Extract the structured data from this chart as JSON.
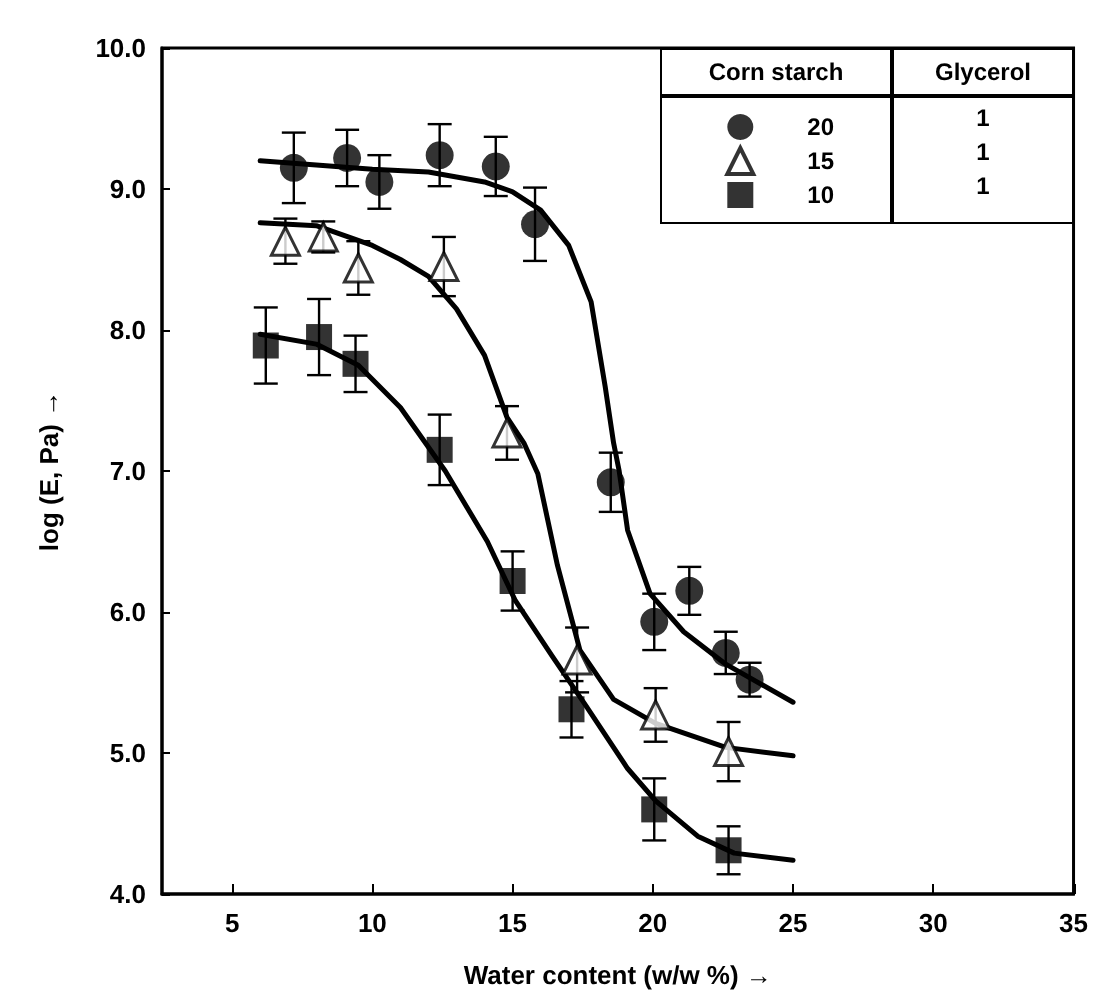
{
  "chart_data": {
    "type": "scatter",
    "xlabel": "Water content (w/w %) →",
    "ylabel": "log (E, Pa) →",
    "legend_title": "Corn starch",
    "legend": "top right",
    "grid": false,
    "annotations": [
      "Glycerol",
      "1",
      "1",
      "1"
    ],
    "xlim": [
      2.5,
      35
    ],
    "xticks": [
      5,
      10,
      15,
      20,
      25,
      30,
      35
    ],
    "ylim": [
      4,
      10
    ],
    "yticks": [
      {
        "value": 4,
        "label": "4.0"
      },
      {
        "value": 5,
        "label": "5.0"
      },
      {
        "value": 6,
        "label": "6.0"
      },
      {
        "value": 7,
        "label": "7.0"
      },
      {
        "value": 8,
        "label": "8.0"
      },
      {
        "value": 9,
        "label": "9.0"
      },
      {
        "value": 10,
        "label": "10.0"
      }
    ],
    "series": [
      {
        "name": "20",
        "color": "#000000",
        "marker": "circle",
        "x": [
          7.2,
          9.1,
          10.25,
          12.4,
          14.4,
          15.8,
          18.5,
          20.05,
          21.3,
          22.6,
          23.45
        ],
        "values": [
          9.15,
          9.22,
          9.05,
          9.24,
          9.16,
          8.75,
          6.92,
          5.93,
          6.15,
          5.71,
          5.52
        ],
        "errors": [
          0.25,
          0.2,
          0.19,
          0.22,
          0.21,
          0.26,
          0.21,
          0.2,
          0.17,
          0.15,
          0.12
        ]
      },
      {
        "name": "15",
        "color": "#000000",
        "marker": "triangle",
        "x": [
          6.9,
          8.25,
          9.5,
          12.55,
          14.8,
          17.3,
          20.1,
          22.7
        ],
        "values": [
          8.63,
          8.66,
          8.44,
          8.45,
          7.27,
          5.66,
          5.27,
          5.01
        ],
        "errors": [
          0.16,
          0.11,
          0.19,
          0.21,
          0.19,
          0.23,
          0.19,
          0.21
        ]
      },
      {
        "name": "10",
        "color": "#000000",
        "marker": "square",
        "x": [
          6.2,
          8.1,
          9.4,
          12.4,
          15,
          17.1,
          20.05,
          22.7
        ],
        "values": [
          7.89,
          7.95,
          7.76,
          7.15,
          6.22,
          5.31,
          4.6,
          4.31
        ],
        "errors": [
          0.27,
          0.27,
          0.2,
          0.25,
          0.21,
          0.2,
          0.22,
          0.17
        ]
      },
      {
        "type": "line",
        "color": "#000000",
        "line_style": "solid",
        "x": [
          6,
          8,
          10,
          12,
          14,
          15,
          16,
          17,
          17.8,
          18.3,
          18.6,
          18.8,
          19.1,
          19.9,
          21.1,
          22.6,
          25
        ],
        "values": [
          9.2,
          9.17,
          9.14,
          9.12,
          9.05,
          8.98,
          8.85,
          8.6,
          8.2,
          7.6,
          7.2,
          7.0,
          6.58,
          6.13,
          5.86,
          5.63,
          5.36
        ]
      },
      {
        "type": "line",
        "color": "#000000",
        "line_style": "solid",
        "x": [
          6,
          8,
          10,
          11,
          12,
          13,
          14,
          14.8,
          15.4,
          15.9,
          16.6,
          17.4,
          18.6,
          20.1,
          22.6,
          25
        ],
        "values": [
          8.76,
          8.74,
          8.6,
          8.5,
          8.38,
          8.15,
          7.82,
          7.38,
          7.2,
          6.98,
          6.33,
          5.73,
          5.38,
          5.21,
          5.04,
          4.98
        ]
      },
      {
        "type": "line",
        "color": "#000000",
        "line_style": "solid",
        "x": [
          6,
          8,
          9.5,
          11,
          12.6,
          14.1,
          15.1,
          16.4,
          17.6,
          19.1,
          20.1,
          21.6,
          22.9,
          25
        ],
        "values": [
          7.97,
          7.9,
          7.75,
          7.45,
          7.0,
          6.5,
          6.08,
          5.69,
          5.34,
          4.89,
          4.66,
          4.41,
          4.29,
          4.24
        ]
      }
    ]
  }
}
